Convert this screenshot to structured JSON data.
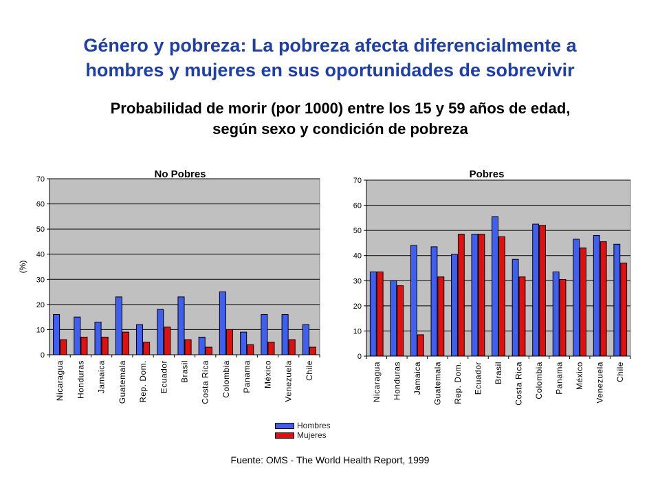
{
  "header": {
    "title_line1": "Género y pobreza: La pobreza afecta diferencialmente a",
    "title_line2": "hombres y mujeres en sus oportunidades de sobrevivir",
    "subtitle_line1": "Probabilidad de morir  (por 1000) entre los 15 y 59 años de edad,",
    "subtitle_line2": "según sexo y condición de pobreza"
  },
  "legend": {
    "hombres": "Hombres",
    "mujeres": "Mujeres"
  },
  "source": "Fuente: OMS - The World Health Report, 1999",
  "colors": {
    "hombres": "#3f5ff0",
    "mujeres": "#e01010",
    "plot_bg": "#c0c0c0"
  },
  "chart_data": [
    {
      "type": "bar",
      "title": "No Pobres",
      "ylabel": "(%)",
      "ylim": [
        0,
        70
      ],
      "yticks": [
        0,
        10,
        20,
        30,
        40,
        50,
        60,
        70
      ],
      "grid": true,
      "categories": [
        "Nicaragua",
        "Honduras",
        "Jamaica",
        "Guatemala",
        "Rep. Dom.",
        "Ecuador",
        "Brasil",
        "Costa Rica",
        "Colombia",
        "Panama",
        "México",
        "Venezuela",
        "Chile"
      ],
      "series": [
        {
          "name": "Hombres",
          "values": [
            16,
            15,
            13,
            23,
            12,
            18,
            23,
            7,
            25,
            9,
            16,
            16,
            12
          ]
        },
        {
          "name": "Mujeres",
          "values": [
            6,
            7,
            7,
            9,
            5,
            11,
            6,
            3,
            10,
            4,
            5,
            6,
            3
          ]
        }
      ]
    },
    {
      "type": "bar",
      "title": "Pobres",
      "ylabel": "",
      "ylim": [
        0,
        70
      ],
      "yticks": [
        0,
        10,
        20,
        30,
        40,
        50,
        60,
        70
      ],
      "grid": true,
      "categories": [
        "Nicaragua",
        "Honduras",
        "Jamaica",
        "Guatemala",
        "Rep. Dom.",
        "Ecuador",
        "Brasil",
        "Costa Rica",
        "Colombia",
        "Panama",
        "México",
        "Venezuela",
        "Chile"
      ],
      "series": [
        {
          "name": "Hombres",
          "values": [
            33.5,
            30,
            44,
            43.5,
            40.5,
            48.5,
            55.5,
            38.5,
            52.5,
            33.5,
            46.5,
            48,
            44.5
          ]
        },
        {
          "name": "Mujeres",
          "values": [
            33.5,
            28,
            8.5,
            31.5,
            48.5,
            48.5,
            47.5,
            31.5,
            52,
            30.5,
            43,
            45.5,
            37
          ]
        }
      ]
    }
  ]
}
